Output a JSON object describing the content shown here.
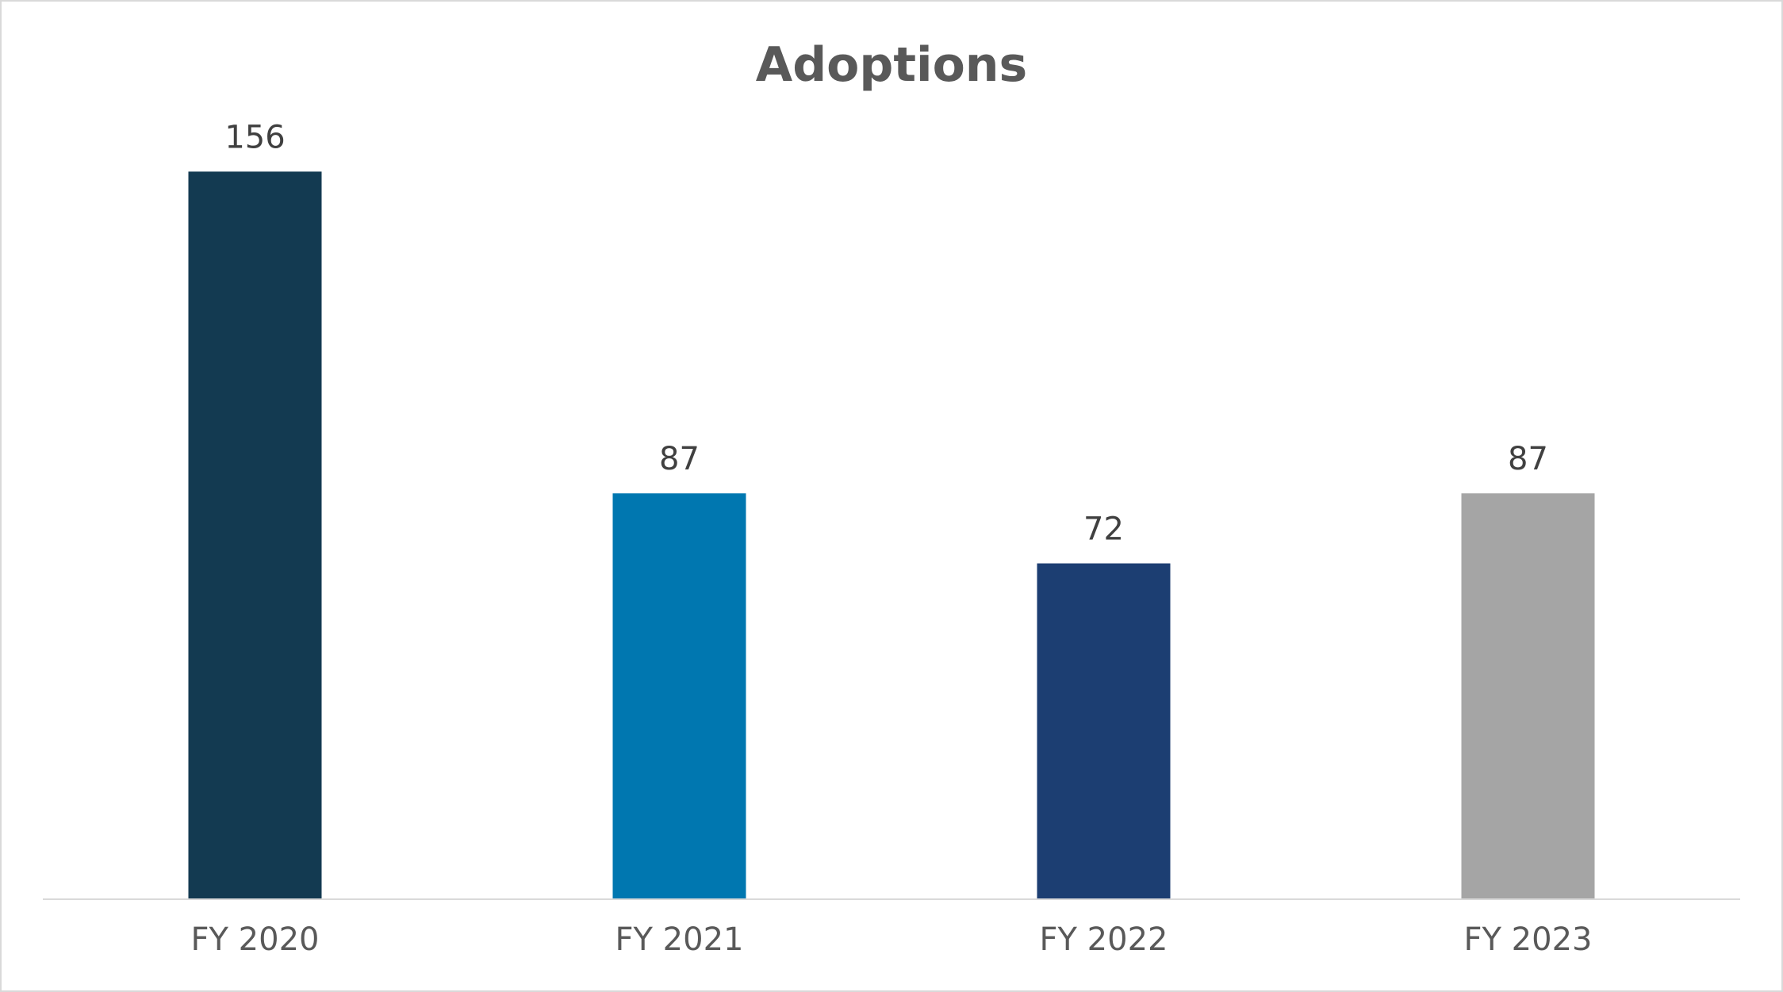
{
  "chart_data": {
    "type": "bar",
    "title": "Adoptions",
    "categories": [
      "FY 2020",
      "FY 2021",
      "FY 2022",
      "FY 2023"
    ],
    "values": [
      156,
      87,
      72,
      87
    ],
    "data_labels": [
      "156",
      "87",
      "72",
      "87"
    ],
    "bar_colors": [
      "#133a51",
      "#0077b0",
      "#1c3e72",
      "#a5a5a5"
    ],
    "ylim": [
      0,
      170
    ],
    "xlabel": "",
    "ylabel": "",
    "grid": false,
    "legend": "none"
  },
  "colors": {
    "title": "#595959",
    "data_label": "#404040",
    "tick_label": "#595959",
    "axis_line": "#d9d9d9",
    "frame": "#d9d9d9",
    "background": "#ffffff"
  }
}
